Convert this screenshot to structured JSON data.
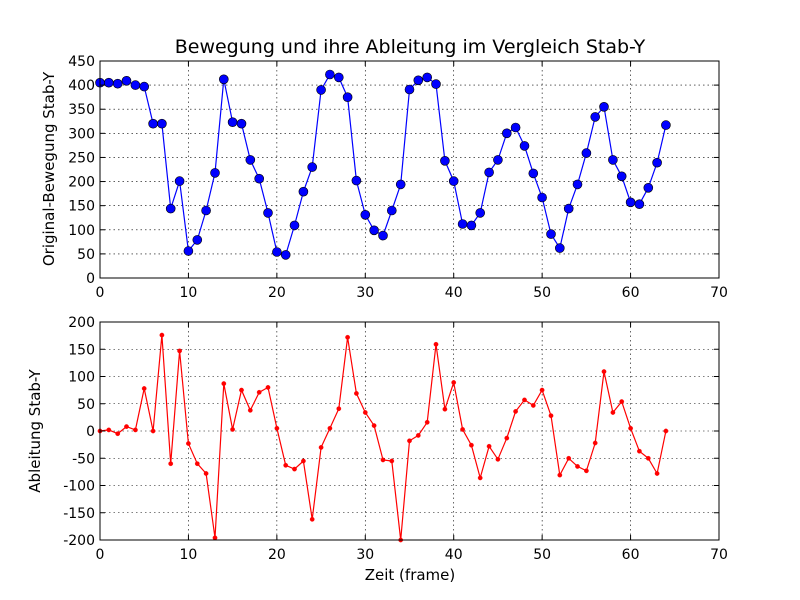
{
  "chart_data": [
    {
      "type": "line",
      "title": "Bewegung und ihre Ableitung im Vergleich Stab-Y",
      "xlabel": "",
      "ylabel": "Original-Bewegung Stab-Y",
      "xlim": [
        0,
        70
      ],
      "ylim": [
        0,
        450
      ],
      "xticks": [
        "0",
        "10",
        "20",
        "30",
        "40",
        "50",
        "60",
        "70"
      ],
      "yticks": [
        "0",
        "50",
        "100",
        "150",
        "200",
        "250",
        "300",
        "350",
        "400",
        "450"
      ],
      "grid": true,
      "color": "#0000ff",
      "marker": "circle",
      "x": [
        0,
        1,
        2,
        3,
        4,
        5,
        6,
        7,
        8,
        9,
        10,
        11,
        12,
        13,
        14,
        15,
        16,
        17,
        18,
        19,
        20,
        21,
        22,
        23,
        24,
        25,
        26,
        27,
        28,
        29,
        30,
        31,
        32,
        33,
        34,
        35,
        36,
        37,
        38,
        39,
        40,
        41,
        42,
        43,
        44,
        45,
        46,
        47,
        48,
        49,
        50,
        51,
        52,
        53,
        54,
        55,
        56,
        57,
        58,
        59,
        60,
        61,
        62,
        63,
        64
      ],
      "y": [
        405,
        405,
        403,
        409,
        400,
        397,
        320,
        320,
        144,
        201,
        56,
        79,
        140,
        218,
        412,
        323,
        320,
        245,
        206,
        135,
        54,
        48,
        109,
        179,
        230,
        390,
        422,
        416,
        375,
        202,
        131,
        99,
        88,
        140,
        194,
        391,
        410,
        416,
        402,
        243,
        201,
        112,
        109,
        135,
        219,
        245,
        300,
        312,
        274,
        217,
        167,
        91,
        62,
        144,
        194,
        259,
        334,
        355,
        245,
        211,
        157,
        153,
        187,
        239,
        317
      ]
    },
    {
      "type": "line",
      "title": "",
      "xlabel": "Zeit (frame)",
      "ylabel": "Ableitung Stab-Y",
      "xlim": [
        0,
        70
      ],
      "ylim": [
        -200,
        200
      ],
      "xticks": [
        "0",
        "10",
        "20",
        "30",
        "40",
        "50",
        "60",
        "70"
      ],
      "yticks": [
        "-200",
        "-150",
        "-100",
        "-50",
        "0",
        "50",
        "100",
        "150",
        "200"
      ],
      "grid": true,
      "color": "#ff0000",
      "marker": "point",
      "x": [
        0,
        1,
        2,
        3,
        4,
        5,
        6,
        7,
        8,
        9,
        10,
        11,
        12,
        13,
        14,
        15,
        16,
        17,
        18,
        19,
        20,
        21,
        22,
        23,
        24,
        25,
        26,
        27,
        28,
        29,
        30,
        31,
        32,
        33,
        34,
        35,
        36,
        37,
        38,
        39,
        40,
        41,
        42,
        43,
        44,
        45,
        46,
        47,
        48,
        49,
        50,
        51,
        52,
        53,
        54,
        55,
        56,
        57,
        58,
        59,
        60,
        61,
        62,
        63,
        64
      ],
      "y": [
        0,
        2,
        -5,
        8,
        2,
        78,
        0,
        176,
        -60,
        147,
        -23,
        -60,
        -78,
        -196,
        87,
        3,
        75,
        38,
        71,
        80,
        5,
        -63,
        -70,
        -55,
        -162,
        -30,
        5,
        41,
        172,
        69,
        34,
        10,
        -53,
        -55,
        -200,
        -18,
        -8,
        16,
        159,
        40,
        89,
        3,
        -26,
        -86,
        -28,
        -52,
        -13,
        36,
        57,
        47,
        75,
        28,
        -81,
        -50,
        -65,
        -73,
        -22,
        109,
        34,
        54,
        5,
        -37,
        -50,
        -78,
        0
      ]
    }
  ]
}
